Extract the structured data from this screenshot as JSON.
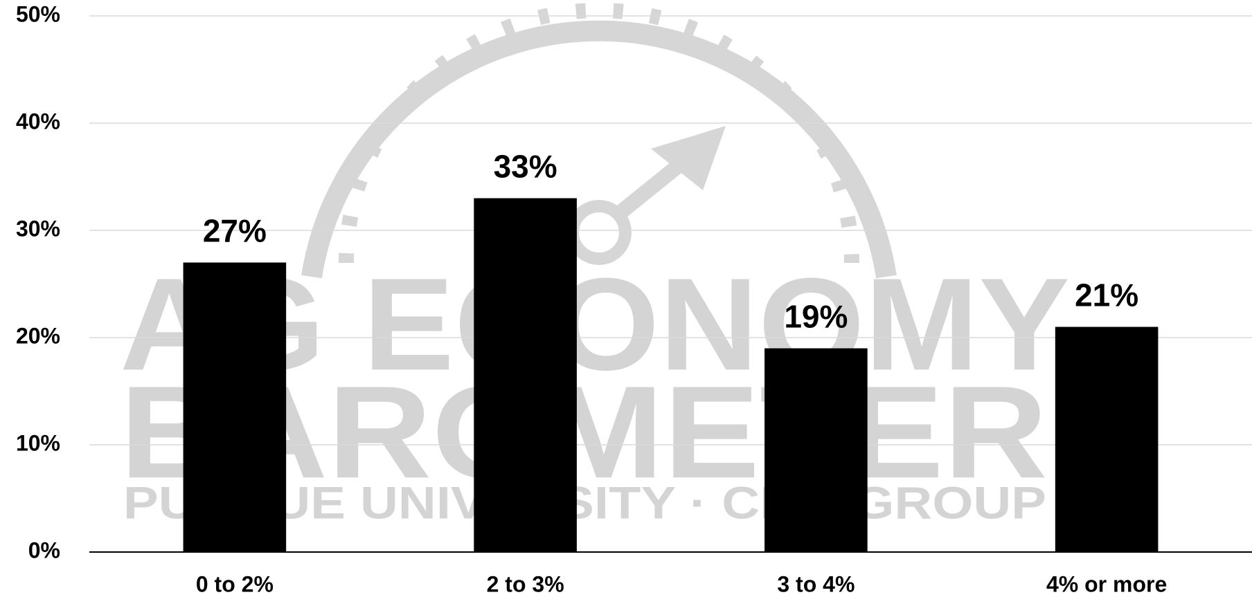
{
  "chart_data": {
    "type": "bar",
    "categories": [
      "0 to 2%",
      "2 to 3%",
      "3 to 4%",
      "4% or more"
    ],
    "values": [
      27,
      33,
      19,
      21
    ],
    "value_labels": [
      "27%",
      "33%",
      "19%",
      "21%"
    ],
    "color": "#000000",
    "ylim": [
      0,
      50
    ],
    "yticks": [
      {
        "value": 0,
        "label": "0%"
      },
      {
        "value": 10,
        "label": "10%"
      },
      {
        "value": 20,
        "label": "20%"
      },
      {
        "value": 30,
        "label": "30%"
      },
      {
        "value": 40,
        "label": "40%"
      },
      {
        "value": 50,
        "label": "50%"
      }
    ],
    "grid": true,
    "watermark": [
      "AG ECONOMY",
      "BAROMETER",
      "PURDUE UNIVERSITY · CME GROUP"
    ]
  }
}
